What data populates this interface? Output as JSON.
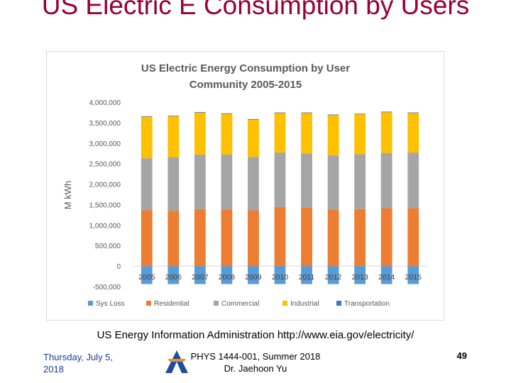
{
  "slide": {
    "title": "US Electric E Consumption by Users",
    "source": "US Energy Information Administration http://www.eia.gov/electricity/",
    "footer_date": "Thursday, July 5, 2018",
    "footer_course_line1": "PHYS 1444-001, Summer 2018",
    "footer_course_line2": "Dr. Jaehoon Yu",
    "page_number": "49"
  },
  "colors": {
    "sys_loss": "#5b9bd5",
    "residential": "#ed7d31",
    "commercial": "#a5a5a5",
    "industrial": "#ffc000",
    "transportation": "#4472c4",
    "title_red": "#990033",
    "logo_blue": "#1f4e9c"
  },
  "chart_data": {
    "type": "bar",
    "stacked": true,
    "title_line1": "US Electric Energy Consumption by User",
    "title_line2": "Community 2005-2015",
    "ylabel": "M kWh",
    "ylim": [
      -500000,
      4000000
    ],
    "yticks": [
      -500000,
      0,
      500000,
      1000000,
      1500000,
      2000000,
      2500000,
      3000000,
      3500000,
      4000000
    ],
    "ytick_labels": [
      "-500,000",
      "0",
      "500,000",
      "1,000,000",
      "1,500,000",
      "2,000,000",
      "2,500,000",
      "3,000,000",
      "3,500,000",
      "4,000,000"
    ],
    "categories": [
      "2005",
      "2006",
      "2007",
      "2008",
      "2009",
      "2010",
      "2011",
      "2012",
      "2013",
      "2014",
      "2015"
    ],
    "series": [
      {
        "name": "Sys Loss",
        "color_key": "sys_loss",
        "values": [
          -440000,
          -440000,
          -440000,
          -440000,
          -440000,
          -440000,
          -440000,
          -440000,
          -440000,
          -440000,
          -440000
        ]
      },
      {
        "name": "Residential",
        "color_key": "residential",
        "values": [
          1360000,
          1350000,
          1390000,
          1380000,
          1360000,
          1440000,
          1420000,
          1370000,
          1390000,
          1410000,
          1410000
        ]
      },
      {
        "name": "Commercial",
        "color_key": "commercial",
        "values": [
          1270000,
          1300000,
          1330000,
          1340000,
          1300000,
          1330000,
          1330000,
          1330000,
          1340000,
          1350000,
          1360000
        ]
      },
      {
        "name": "Industrial",
        "color_key": "industrial",
        "values": [
          1020000,
          1010000,
          1030000,
          1000000,
          920000,
          970000,
          990000,
          990000,
          980000,
          1000000,
          970000
        ]
      },
      {
        "name": "Transportation",
        "color_key": "transportation",
        "values": [
          7500,
          7400,
          8200,
          7700,
          7800,
          7700,
          7700,
          7300,
          7600,
          7800,
          7600
        ]
      }
    ],
    "legend": [
      "Sys Loss",
      "Residential",
      "Commercial",
      "Industrial",
      "Transportation"
    ],
    "legend_position": "bottom",
    "grid": false
  }
}
